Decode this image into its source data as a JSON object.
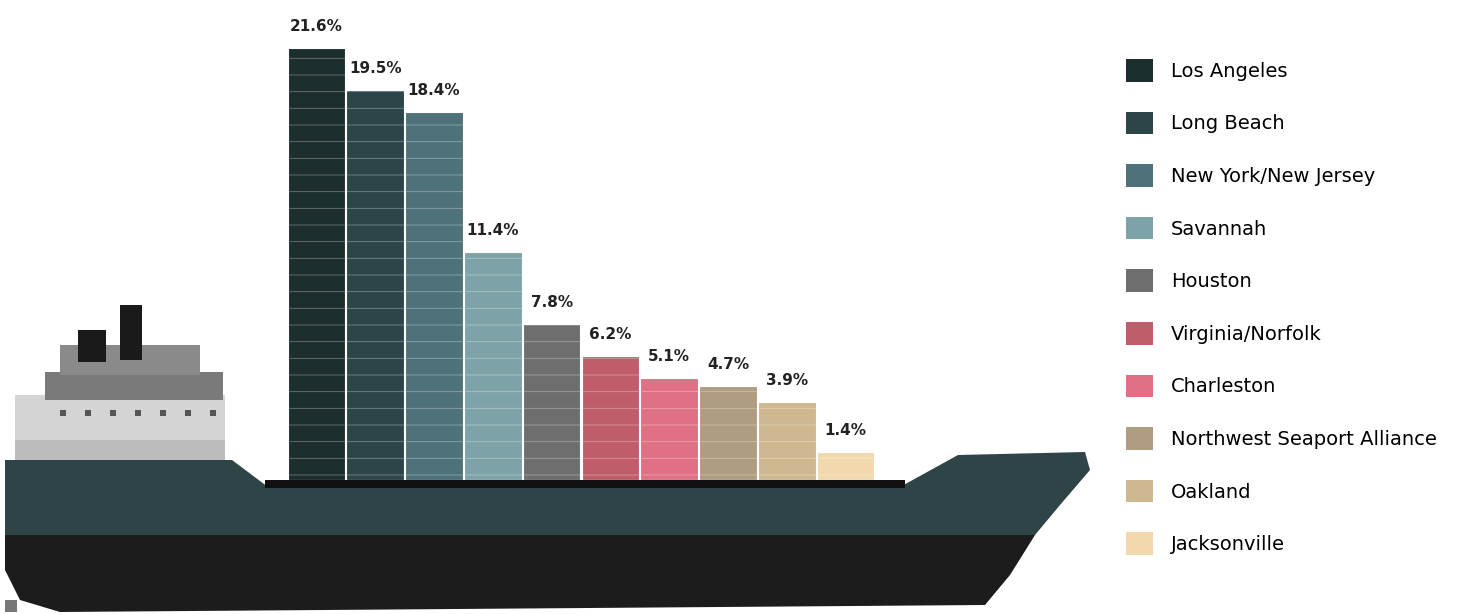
{
  "chart_data": {
    "type": "bar",
    "categories": [
      "Los Angeles",
      "Long Beach",
      "New York/New Jersey",
      "Savannah",
      "Houston",
      "Virginia/Norfolk",
      "Charleston",
      "Northwest Seaport Alliance",
      "Oakland",
      "Jacksonville"
    ],
    "values": [
      21.6,
      19.5,
      18.4,
      11.4,
      7.8,
      6.2,
      5.1,
      4.7,
      3.9,
      1.4
    ],
    "value_labels": [
      "21.6%",
      "19.5%",
      "18.4%",
      "11.4%",
      "7.8%",
      "6.2%",
      "5.1%",
      "4.7%",
      "3.9%",
      "1.4%"
    ],
    "colors": [
      "#1c2e2e",
      "#2b4548",
      "#4f727a",
      "#7da3a8",
      "#6e6e6e",
      "#bf5e6a",
      "#e07086",
      "#b09c80",
      "#cfb890",
      "#f2d9ad"
    ],
    "ylim": [
      0,
      24
    ],
    "data_labels": true,
    "tick_labels": false,
    "legend": "right"
  }
}
